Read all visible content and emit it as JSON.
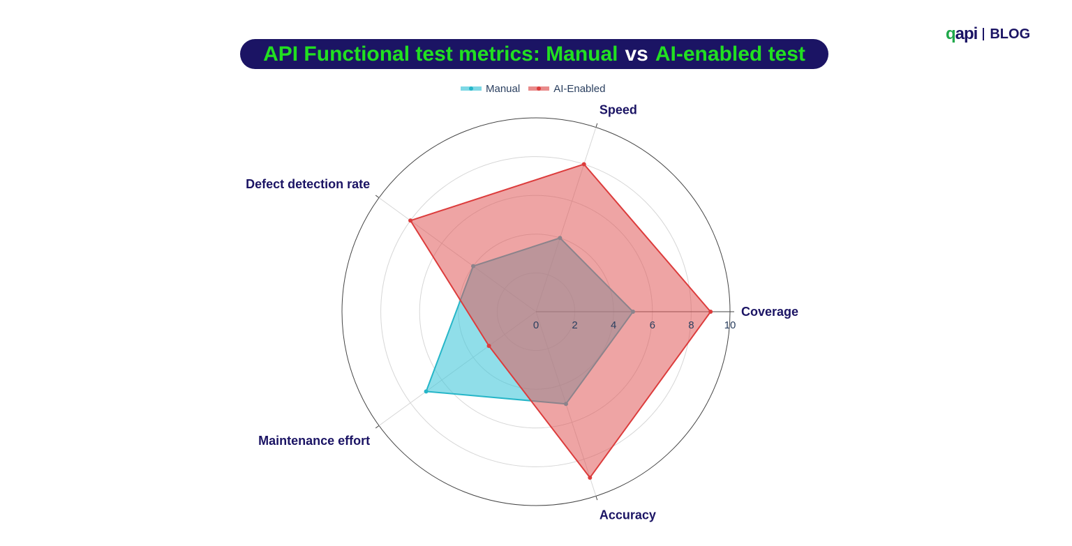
{
  "header": {
    "title_part1": "API Functional test metrics: Manual",
    "title_vs": "vs",
    "title_part2": "AI-enabled test",
    "colors": {
      "title_bg": "#1b1464",
      "title_green": "#22e021",
      "title_white": "#ffffff"
    }
  },
  "brand": {
    "logo_q": "q",
    "logo_api": "api",
    "blog": "BLOG"
  },
  "chart_data": {
    "type": "radar",
    "axes": [
      "Coverage",
      "Speed",
      "Defect detection rate",
      "Maintenance effort",
      "Accuracy"
    ],
    "angular_start_deg": 0,
    "radial_range": [
      0,
      10
    ],
    "radial_ticks": [
      "0",
      "2",
      "4",
      "6",
      "8",
      "10"
    ],
    "grid": true,
    "legend_position": "top-center",
    "series": [
      {
        "name": "Manual",
        "values": [
          5,
          4,
          4,
          7,
          5
        ],
        "color": "#26b6c8",
        "fill": "#46c8da",
        "fill_opacity": 0.6
      },
      {
        "name": "AI-Enabled",
        "values": [
          9,
          8,
          8,
          3,
          9
        ],
        "color": "#dc3c3c",
        "fill": "#e05a5a",
        "fill_opacity": 0.55
      }
    ]
  }
}
